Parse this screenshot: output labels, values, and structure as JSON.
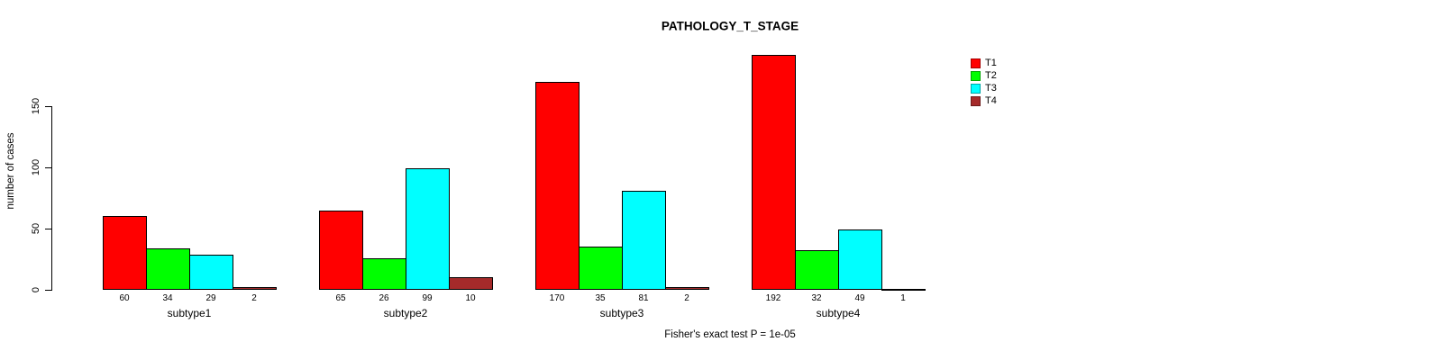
{
  "chart_data": {
    "type": "bar",
    "title": "PATHOLOGY_T_STAGE",
    "ylabel": "number of cases",
    "xlabel": "",
    "yticks": [
      0,
      50,
      100,
      150
    ],
    "ylim": [
      0,
      150
    ],
    "grid": false,
    "legend_position": "right",
    "categories": [
      "subtype1",
      "subtype2",
      "subtype3",
      "subtype4"
    ],
    "series": [
      {
        "name": "T1",
        "color": "#FF0000",
        "values": [
          60,
          65,
          170,
          192
        ]
      },
      {
        "name": "T2",
        "color": "#00FF00",
        "values": [
          34,
          26,
          35,
          32
        ]
      },
      {
        "name": "T3",
        "color": "#00FFFF",
        "values": [
          29,
          99,
          81,
          49
        ]
      },
      {
        "name": "T4",
        "color": "#A52A2A",
        "values": [
          2,
          10,
          2,
          1
        ]
      }
    ],
    "footnote": "Fisher's exact test P = 1e-05"
  }
}
